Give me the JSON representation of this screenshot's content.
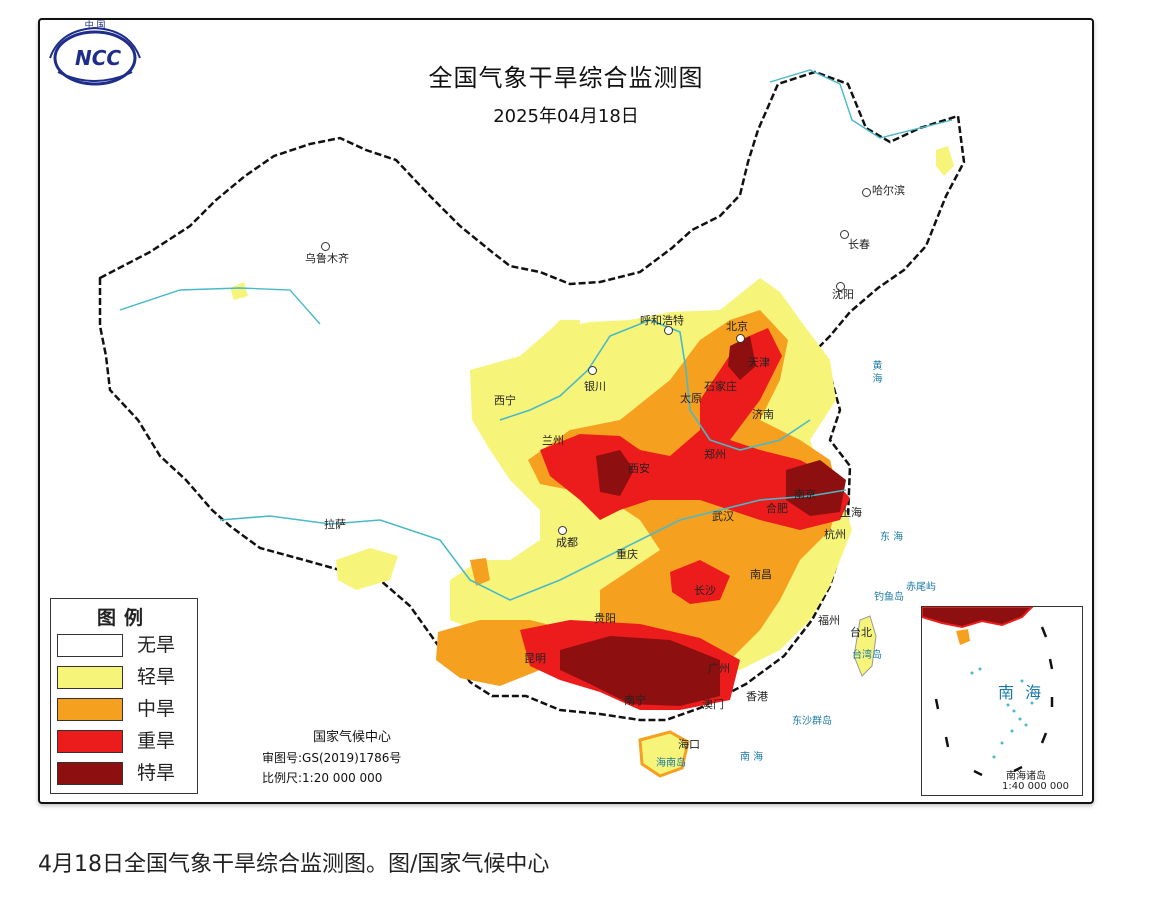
{
  "map": {
    "title": "全国气象干旱综合监测图",
    "date": "2025年04月18日",
    "logo_text": "NCC",
    "logo_top_text": "中 国",
    "legend": {
      "title": "图例",
      "items": [
        {
          "label": "无旱",
          "color": "#ffffff"
        },
        {
          "label": "轻旱",
          "color": "#f7f47a"
        },
        {
          "label": "中旱",
          "color": "#f6a020"
        },
        {
          "label": "重旱",
          "color": "#ec1c1c"
        },
        {
          "label": "特旱",
          "color": "#8e0f0f"
        }
      ]
    },
    "credits": {
      "org": "国家气候中心",
      "approval": "审图号:GS(2019)1786号",
      "scale": "比例尺:1:20 000 000"
    },
    "cities": [
      {
        "name": "乌鲁木齐"
      },
      {
        "name": "哈尔滨"
      },
      {
        "name": "长春"
      },
      {
        "name": "沈阳"
      },
      {
        "name": "呼和浩特"
      },
      {
        "name": "北京"
      },
      {
        "name": "天津"
      },
      {
        "name": "石家庄"
      },
      {
        "name": "太原"
      },
      {
        "name": "济南"
      },
      {
        "name": "银川"
      },
      {
        "name": "西宁"
      },
      {
        "name": "兰州"
      },
      {
        "name": "郑州"
      },
      {
        "name": "西安"
      },
      {
        "name": "南京"
      },
      {
        "name": "合肥"
      },
      {
        "name": "上海"
      },
      {
        "name": "武汉"
      },
      {
        "name": "杭州"
      },
      {
        "name": "成都"
      },
      {
        "name": "重庆"
      },
      {
        "name": "拉萨"
      },
      {
        "name": "长沙"
      },
      {
        "name": "南昌"
      },
      {
        "name": "贵阳"
      },
      {
        "name": "福州"
      },
      {
        "name": "台北"
      },
      {
        "name": "昆明"
      },
      {
        "name": "广州"
      },
      {
        "name": "南宁"
      },
      {
        "name": "澳门"
      },
      {
        "name": "香港"
      },
      {
        "name": "海口"
      }
    ],
    "sea_labels": {
      "east_sea": "东 海",
      "yellow_sea": "黄 海",
      "south_sea_main": "南 海",
      "dongsha": "东沙群岛",
      "diaoyu": "钓鱼岛",
      "chiwei": "赤尾屿",
      "taiwan_island": "台湾岛",
      "hainan_island": "海南岛"
    },
    "inset": {
      "sea_label": "南 海",
      "islands_label": "南海诸岛",
      "scale": "1:40 000 000"
    }
  },
  "caption": "4月18日全国气象干旱综合监测图。图/国家气候中心"
}
